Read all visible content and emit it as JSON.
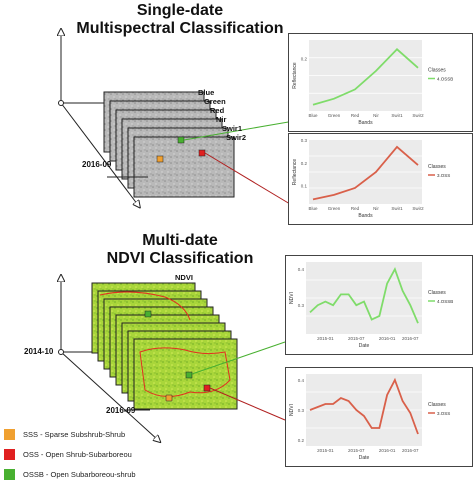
{
  "top_section": {
    "title_line1": "Single-date",
    "title_line2": "Multispectral Classification",
    "bands": [
      "Blue",
      "Green",
      "Red",
      "Nir",
      "Swir1",
      "Swir2"
    ],
    "date": "2016-09"
  },
  "bottom_section": {
    "title_line1": "Multi-date",
    "title_line2": "NDVI Classification",
    "layer_label": "NDVI",
    "date_start": "2014-10",
    "date_end": "2016-09"
  },
  "legend": [
    {
      "code": "SSS",
      "label": "SSS - Sparse Subshrub-Shrub",
      "color": "#f0a030"
    },
    {
      "code": "OSS",
      "label": "OSS - Open Shrub-Subarboreou",
      "color": "#e02020"
    },
    {
      "code": "OSSB",
      "label": "OSSB - Open Subarboreou-shrub",
      "color": "#48b030"
    }
  ],
  "colors": {
    "green_line": "#7fdc6a",
    "red_line": "#d9604a",
    "panel_bg": "#ebebeb"
  },
  "chart_data": [
    {
      "type": "line",
      "categories": [
        "Blue",
        "Green",
        "Red",
        "Nir",
        "Swir1",
        "Swir2"
      ],
      "series": [
        {
          "name": "4.OSSB",
          "values": [
            0.05,
            0.07,
            0.1,
            0.16,
            0.23,
            0.17
          ]
        }
      ],
      "xlabel": "Bands",
      "ylabel": "Reflectance",
      "legend_title": "Classes",
      "y_ticks": [
        "0.2"
      ],
      "ylim": [
        0.03,
        0.26
      ]
    },
    {
      "type": "line",
      "categories": [
        "Blue",
        "Green",
        "Red",
        "Nir",
        "Swir1",
        "Swir2"
      ],
      "series": [
        {
          "name": "3.OSS",
          "values": [
            0.04,
            0.06,
            0.09,
            0.16,
            0.27,
            0.19
          ]
        }
      ],
      "xlabel": "Bands",
      "ylabel": "Reflectance",
      "legend_title": "Classes",
      "y_ticks": [
        "0.1",
        "0.2",
        "0.3"
      ],
      "ylim": [
        0.02,
        0.3
      ]
    },
    {
      "type": "line",
      "x": [
        "2014-10",
        "2014-12",
        "2015-01",
        "2015-02",
        "2015-04",
        "2015-05",
        "2015-07",
        "2015-09",
        "2015-10",
        "2015-12",
        "2016-01",
        "2016-03",
        "2016-05",
        "2016-07",
        "2016-09"
      ],
      "series": [
        {
          "name": "4.OSSB",
          "values": [
            0.28,
            0.3,
            0.31,
            0.3,
            0.33,
            0.33,
            0.3,
            0.31,
            0.26,
            0.27,
            0.36,
            0.4,
            0.34,
            0.3,
            0.25
          ]
        }
      ],
      "xlabel": "Date",
      "ylabel": "NDVI",
      "legend_title": "Classes",
      "x_ticks": [
        "2015-01",
        "2015-07",
        "2016-01",
        "2016-07"
      ],
      "y_ticks": [
        "0.4",
        "0.3"
      ],
      "ylim": [
        0.22,
        0.42
      ]
    },
    {
      "type": "line",
      "x": [
        "2014-10",
        "2014-12",
        "2015-01",
        "2015-02",
        "2015-04",
        "2015-05",
        "2015-07",
        "2015-09",
        "2015-10",
        "2015-12",
        "2016-01",
        "2016-03",
        "2016-05",
        "2016-07",
        "2016-09"
      ],
      "series": [
        {
          "name": "3.OSS",
          "values": [
            0.3,
            0.31,
            0.32,
            0.32,
            0.34,
            0.33,
            0.3,
            0.28,
            0.24,
            0.24,
            0.35,
            0.4,
            0.33,
            0.29,
            0.22
          ]
        }
      ],
      "xlabel": "Date",
      "ylabel": "NDVI",
      "legend_title": "Classes",
      "x_ticks": [
        "2015-01",
        "2015-07",
        "2016-01",
        "2016-07"
      ],
      "y_ticks": [
        "0.4",
        "0.3",
        "0.2"
      ],
      "ylim": [
        0.18,
        0.42
      ]
    }
  ]
}
